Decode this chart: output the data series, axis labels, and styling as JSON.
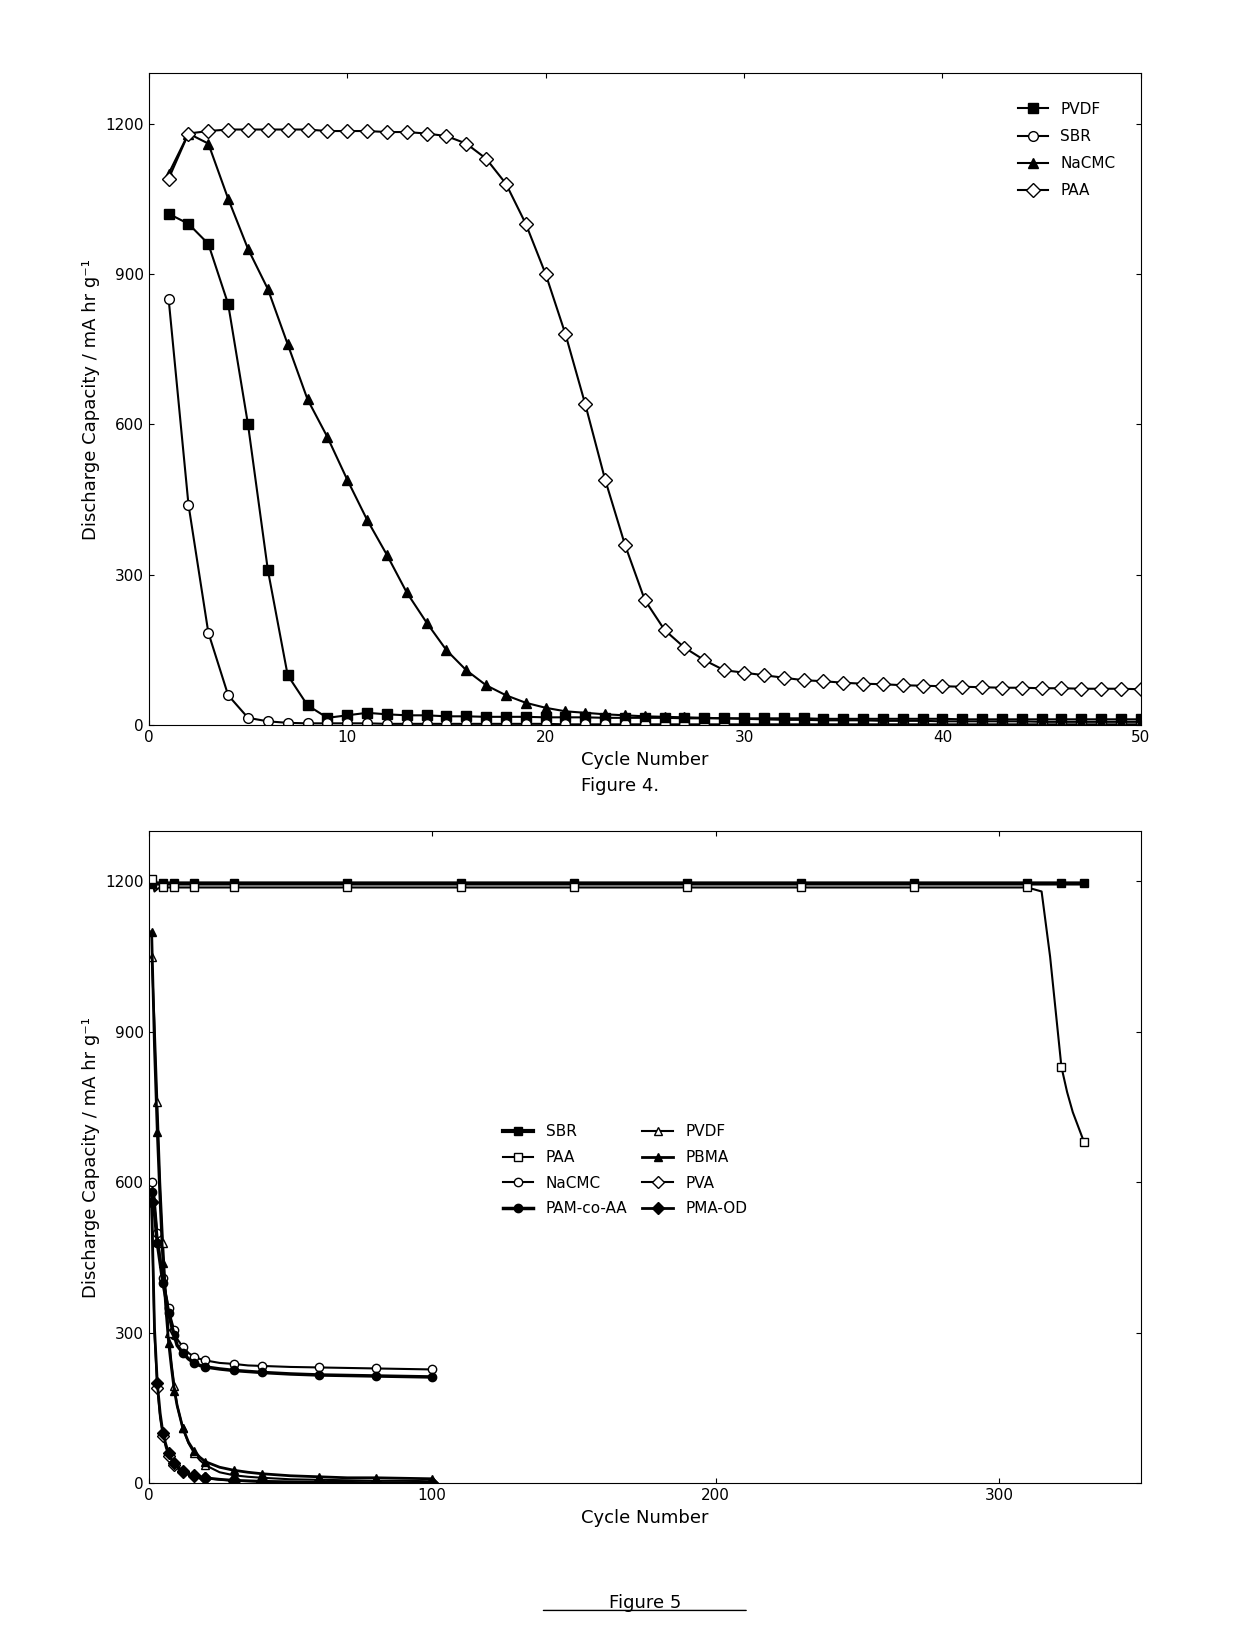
{
  "fig4": {
    "title": "Figure 4.",
    "xlabel": "Cycle Number",
    "ylabel": "Discharge Capacity / mA hr g⁻¹",
    "xlim": [
      0,
      50
    ],
    "ylim": [
      0,
      1300
    ],
    "yticks": [
      0,
      300,
      600,
      900,
      1200
    ],
    "xticks": [
      0,
      10,
      20,
      30,
      40,
      50
    ],
    "series": {
      "PVDF": {
        "x": [
          1,
          2,
          3,
          4,
          5,
          6,
          7,
          8,
          9,
          10,
          11,
          12,
          13,
          14,
          15,
          16,
          17,
          18,
          19,
          20,
          21,
          22,
          23,
          24,
          25,
          26,
          27,
          28,
          29,
          30,
          31,
          32,
          33,
          34,
          35,
          36,
          37,
          38,
          39,
          40,
          41,
          42,
          43,
          44,
          45,
          46,
          47,
          48,
          49,
          50
        ],
        "y": [
          1020,
          1000,
          960,
          840,
          600,
          310,
          100,
          40,
          15,
          20,
          25,
          22,
          20,
          20,
          18,
          18,
          17,
          17,
          17,
          16,
          16,
          16,
          15,
          15,
          15,
          15,
          14,
          14,
          14,
          14,
          14,
          14,
          14,
          13,
          13,
          13,
          13,
          13,
          13,
          13,
          12,
          12,
          12,
          12,
          12,
          12,
          12,
          12,
          12,
          12
        ],
        "marker": "s",
        "fillstyle": "full",
        "markersize": 7
      },
      "SBR": {
        "x": [
          1,
          2,
          3,
          4,
          5,
          6,
          7,
          8,
          9,
          10,
          11,
          12,
          13,
          14,
          15,
          16,
          17,
          18,
          19,
          20,
          21,
          22,
          23,
          24,
          25,
          26,
          27,
          28,
          29,
          30,
          31,
          32,
          33,
          34,
          35,
          36,
          37,
          38,
          39,
          40,
          41,
          42,
          43,
          44,
          45,
          46,
          47,
          48,
          49,
          50
        ],
        "y": [
          850,
          440,
          185,
          60,
          15,
          8,
          5,
          4,
          4,
          4,
          4,
          3,
          3,
          3,
          3,
          3,
          3,
          3,
          3,
          3,
          2,
          2,
          2,
          2,
          2,
          2,
          2,
          2,
          2,
          2,
          2,
          2,
          2,
          2,
          2,
          2,
          2,
          2,
          2,
          2,
          2,
          2,
          2,
          2,
          2,
          2,
          2,
          2,
          2,
          2
        ],
        "marker": "o",
        "fillstyle": "none",
        "markersize": 7
      },
      "NaCMC": {
        "x": [
          1,
          2,
          3,
          4,
          5,
          6,
          7,
          8,
          9,
          10,
          11,
          12,
          13,
          14,
          15,
          16,
          17,
          18,
          19,
          20,
          21,
          22,
          23,
          24,
          25,
          26,
          27,
          28,
          29,
          30,
          31,
          32,
          33,
          34,
          35,
          36,
          37,
          38,
          39,
          40,
          41,
          42,
          43,
          44,
          45,
          46,
          47,
          48,
          49,
          50
        ],
        "y": [
          1100,
          1180,
          1160,
          1050,
          950,
          870,
          760,
          650,
          575,
          490,
          410,
          340,
          265,
          205,
          150,
          110,
          80,
          60,
          45,
          35,
          28,
          25,
          22,
          20,
          18,
          17,
          16,
          15,
          14,
          13,
          12,
          11,
          11,
          10,
          10,
          10,
          9,
          9,
          9,
          8,
          8,
          8,
          8,
          8,
          7,
          7,
          7,
          7,
          7,
          7
        ],
        "marker": "^",
        "fillstyle": "full",
        "markersize": 7
      },
      "PAA": {
        "x": [
          1,
          2,
          3,
          4,
          5,
          6,
          7,
          8,
          9,
          10,
          11,
          12,
          13,
          14,
          15,
          16,
          17,
          18,
          19,
          20,
          21,
          22,
          23,
          24,
          25,
          26,
          27,
          28,
          29,
          30,
          31,
          32,
          33,
          34,
          35,
          36,
          37,
          38,
          39,
          40,
          41,
          42,
          43,
          44,
          45,
          46,
          47,
          48,
          49,
          50
        ],
        "y": [
          1090,
          1180,
          1185,
          1188,
          1188,
          1188,
          1188,
          1188,
          1185,
          1185,
          1185,
          1183,
          1183,
          1180,
          1175,
          1160,
          1130,
          1080,
          1000,
          900,
          780,
          640,
          490,
          360,
          250,
          190,
          155,
          130,
          110,
          105,
          100,
          95,
          90,
          88,
          85,
          83,
          82,
          80,
          79,
          78,
          77,
          76,
          75,
          75,
          74,
          74,
          73,
          73,
          73,
          72
        ],
        "marker": "D",
        "fillstyle": "none",
        "markersize": 7
      }
    }
  },
  "fig5": {
    "title": "Figure 5",
    "xlabel": "Cycle Number",
    "ylabel": "Discharge Capacity / mA hr g⁻¹",
    "xlim": [
      0,
      350
    ],
    "ylim": [
      0,
      1300
    ],
    "yticks": [
      0,
      300,
      600,
      900,
      1200
    ],
    "xticks": [
      0,
      100,
      200,
      300
    ],
    "series": {
      "PAA": {
        "x": [
          1,
          2,
          3,
          4,
          5,
          6,
          7,
          8,
          9,
          10,
          12,
          14,
          16,
          18,
          20,
          25,
          30,
          40,
          50,
          60,
          70,
          80,
          90,
          100,
          110,
          120,
          130,
          140,
          150,
          160,
          170,
          180,
          190,
          200,
          210,
          220,
          230,
          240,
          250,
          260,
          270,
          280,
          290,
          300,
          310,
          315,
          318,
          320,
          322,
          324,
          326,
          328,
          330
        ],
        "y": [
          1205,
          1180,
          1185,
          1188,
          1188,
          1188,
          1188,
          1188,
          1188,
          1188,
          1188,
          1188,
          1188,
          1188,
          1188,
          1188,
          1188,
          1188,
          1188,
          1188,
          1188,
          1188,
          1188,
          1188,
          1188,
          1188,
          1188,
          1188,
          1188,
          1188,
          1188,
          1188,
          1188,
          1188,
          1188,
          1188,
          1188,
          1188,
          1188,
          1188,
          1188,
          1188,
          1188,
          1188,
          1188,
          1180,
          1050,
          940,
          830,
          780,
          740,
          710,
          680
        ],
        "marker": "s",
        "fillstyle": "none",
        "markersize": 6,
        "linewidth": 1.5
      },
      "SBR": {
        "x": [
          1,
          2,
          3,
          4,
          5,
          6,
          7,
          8,
          9,
          10,
          12,
          14,
          16,
          18,
          20,
          25,
          30,
          40,
          50,
          60,
          70,
          80,
          90,
          100,
          110,
          120,
          130,
          140,
          150,
          160,
          170,
          180,
          190,
          200,
          210,
          220,
          230,
          240,
          250,
          260,
          270,
          280,
          290,
          300,
          310,
          315,
          318,
          320,
          322,
          324,
          326,
          328,
          330
        ],
        "y": [
          1195,
          1195,
          1196,
          1196,
          1196,
          1196,
          1196,
          1196,
          1196,
          1196,
          1196,
          1196,
          1196,
          1196,
          1196,
          1196,
          1196,
          1196,
          1196,
          1196,
          1196,
          1196,
          1196,
          1196,
          1196,
          1196,
          1196,
          1196,
          1196,
          1196,
          1196,
          1196,
          1196,
          1196,
          1196,
          1196,
          1196,
          1196,
          1196,
          1196,
          1196,
          1196,
          1196,
          1196,
          1196,
          1196,
          1196,
          1196,
          1196,
          1196,
          1196,
          1196,
          1196
        ],
        "marker": "s",
        "fillstyle": "full",
        "markersize": 6,
        "linewidth": 3.0
      },
      "NaCMC": {
        "x": [
          1,
          2,
          3,
          4,
          5,
          6,
          7,
          8,
          9,
          10,
          12,
          14,
          16,
          18,
          20,
          25,
          30,
          35,
          40,
          50,
          60,
          70,
          80,
          90,
          100
        ],
        "y": [
          600,
          570,
          500,
          450,
          410,
          380,
          350,
          325,
          305,
          288,
          272,
          260,
          252,
          248,
          245,
          240,
          238,
          235,
          234,
          232,
          231,
          230,
          229,
          228,
          227
        ],
        "marker": "o",
        "fillstyle": "none",
        "markersize": 6,
        "linewidth": 1.5
      },
      "PAM-co-AA": {
        "x": [
          1,
          2,
          3,
          4,
          5,
          6,
          7,
          8,
          9,
          10,
          12,
          14,
          16,
          18,
          20,
          25,
          30,
          35,
          40,
          50,
          60,
          70,
          80,
          90,
          100
        ],
        "y": [
          580,
          540,
          480,
          440,
          400,
          370,
          340,
          315,
          295,
          275,
          260,
          248,
          240,
          235,
          232,
          228,
          225,
          223,
          221,
          218,
          216,
          215,
          214,
          213,
          212
        ],
        "marker": "o",
        "fillstyle": "full",
        "markersize": 6,
        "linewidth": 2.5
      },
      "PVDF": {
        "x": [
          1,
          2,
          3,
          4,
          5,
          6,
          7,
          8,
          9,
          10,
          12,
          14,
          16,
          18,
          20,
          25,
          30,
          35,
          40,
          50,
          60,
          70,
          80,
          90,
          100
        ],
        "y": [
          1050,
          920,
          760,
          600,
          480,
          380,
          300,
          240,
          195,
          155,
          110,
          80,
          60,
          46,
          36,
          22,
          16,
          13,
          11,
          8,
          7,
          6,
          5,
          5,
          4
        ],
        "marker": "^",
        "fillstyle": "none",
        "markersize": 6,
        "linewidth": 1.5
      },
      "PBMA": {
        "x": [
          1,
          2,
          3,
          4,
          5,
          6,
          7,
          8,
          9,
          10,
          12,
          14,
          16,
          18,
          20,
          25,
          30,
          35,
          40,
          50,
          60,
          70,
          80,
          90,
          100
        ],
        "y": [
          1100,
          870,
          700,
          560,
          440,
          350,
          280,
          230,
          185,
          155,
          110,
          82,
          64,
          52,
          43,
          32,
          26,
          22,
          19,
          15,
          13,
          11,
          11,
          10,
          9
        ],
        "marker": "^",
        "fillstyle": "full",
        "markersize": 6,
        "linewidth": 2.0
      },
      "PVA": {
        "x": [
          1,
          2,
          3,
          4,
          5,
          6,
          7,
          8,
          9,
          10,
          12,
          14,
          16,
          18,
          20,
          25,
          30,
          35,
          40,
          50,
          60,
          70,
          80,
          90,
          100
        ],
        "y": [
          560,
          300,
          190,
          130,
          95,
          72,
          55,
          44,
          36,
          30,
          22,
          17,
          14,
          12,
          10,
          7,
          5,
          4,
          3,
          2,
          2,
          1,
          1,
          1,
          1
        ],
        "marker": "D",
        "fillstyle": "none",
        "markersize": 6,
        "linewidth": 1.5
      },
      "PMA-OD": {
        "x": [
          1,
          2,
          3,
          4,
          5,
          6,
          7,
          8,
          9,
          10,
          12,
          14,
          16,
          18,
          20,
          25,
          30,
          35,
          40,
          50,
          60,
          70,
          80,
          90,
          100
        ],
        "y": [
          560,
          310,
          200,
          140,
          100,
          78,
          60,
          48,
          40,
          33,
          25,
          19,
          16,
          13,
          11,
          8,
          6,
          5,
          4,
          3,
          2,
          2,
          1,
          1,
          1
        ],
        "marker": "D",
        "fillstyle": "full",
        "markersize": 6,
        "linewidth": 2.0
      }
    }
  },
  "background_color": "#ffffff",
  "fontsize_label": 13,
  "fontsize_tick": 11,
  "fontsize_legend": 11,
  "fontsize_caption": 13
}
